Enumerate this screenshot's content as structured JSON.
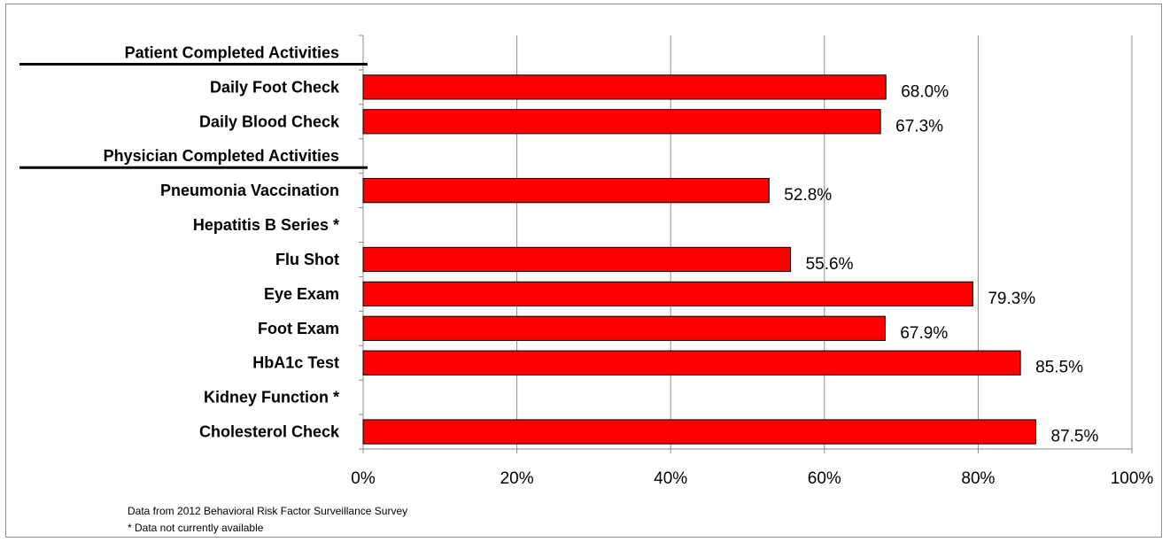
{
  "chart_data": {
    "type": "bar",
    "orientation": "horizontal",
    "categories": [
      "Patient Completed Activities",
      "Daily Foot Check",
      "Daily Blood Check",
      "Physician  Completed Activities",
      "Pneumonia Vaccination",
      "Hepatitis B Series *",
      "Flu Shot",
      "Eye Exam",
      "Foot Exam",
      "HbA1c Test",
      "Kidney Function *",
      "Cholesterol Check"
    ],
    "section_headers": [
      "Patient Completed Activities",
      "Physician  Completed Activities"
    ],
    "values": [
      null,
      68.0,
      67.3,
      null,
      52.8,
      null,
      55.6,
      79.3,
      67.9,
      85.5,
      null,
      87.5
    ],
    "data_labels": [
      "",
      "68.0%",
      "67.3%",
      "",
      "52.8%",
      "",
      "55.6%",
      "79.3%",
      "67.9%",
      "85.5%",
      "",
      "87.5%"
    ],
    "x_ticks": [
      "0%",
      "20%",
      "40%",
      "60%",
      "80%",
      "100%"
    ],
    "xlim": [
      0,
      100
    ],
    "grid": true,
    "bar_color": "#ff0000",
    "bar_edge_color": "#000000"
  },
  "footnotes": {
    "source": "Data from 2012 Behavioral Risk Factor Surveillance Survey",
    "note": "* Data not currently available"
  }
}
